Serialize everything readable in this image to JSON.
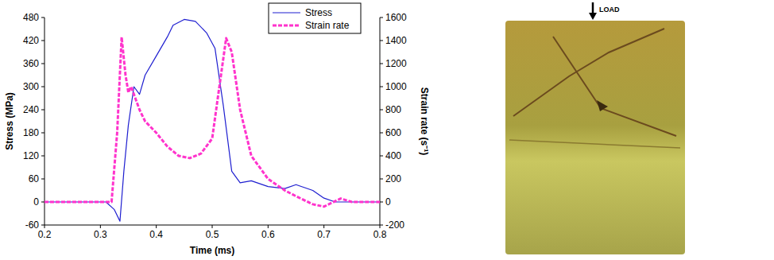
{
  "chart_data": {
    "type": "line",
    "x_label": "Time (ms)",
    "y_label": "Stress (MPa)",
    "y2_label": "Strain rate (s⁻¹)",
    "xlim": [
      0.2,
      0.8
    ],
    "xticks": [
      0.2,
      0.3,
      0.4,
      0.5,
      0.6,
      0.7,
      0.8
    ],
    "ylim": [
      -60,
      480
    ],
    "yticks": [
      -60,
      0,
      60,
      120,
      180,
      240,
      300,
      360,
      420,
      480
    ],
    "y2lim": [
      -200,
      1600
    ],
    "y2ticks": [
      -200,
      0,
      200,
      400,
      600,
      800,
      1000,
      1200,
      1400,
      1600
    ],
    "legend": "top-right",
    "series": [
      {
        "name": "Stress",
        "color": "#1f1fd0",
        "line_style": "solid",
        "x": [
          0.2,
          0.31,
          0.325,
          0.335,
          0.342,
          0.35,
          0.36,
          0.37,
          0.38,
          0.4,
          0.42,
          0.43,
          0.45,
          0.47,
          0.49,
          0.505,
          0.52,
          0.535,
          0.55,
          0.57,
          0.6,
          0.63,
          0.65,
          0.68,
          0.7,
          0.72,
          0.8
        ],
        "values": [
          0,
          0,
          -20,
          -50,
          80,
          200,
          300,
          280,
          330,
          380,
          430,
          460,
          475,
          470,
          440,
          400,
          250,
          80,
          50,
          55,
          40,
          35,
          45,
          30,
          10,
          0,
          0
        ]
      },
      {
        "name": "Strain rate",
        "color": "#ff33cc",
        "line_style": "dashed",
        "axis": "y2",
        "x": [
          0.2,
          0.32,
          0.33,
          0.338,
          0.345,
          0.35,
          0.355,
          0.37,
          0.38,
          0.4,
          0.42,
          0.44,
          0.46,
          0.48,
          0.5,
          0.51,
          0.525,
          0.535,
          0.55,
          0.57,
          0.6,
          0.63,
          0.65,
          0.68,
          0.7,
          0.73,
          0.75,
          0.8
        ],
        "values": [
          0,
          0,
          600,
          1430,
          1100,
          950,
          1000,
          800,
          700,
          600,
          480,
          400,
          380,
          420,
          550,
          900,
          1420,
          1300,
          800,
          400,
          200,
          100,
          50,
          -20,
          -40,
          30,
          0,
          0
        ]
      }
    ]
  },
  "image": {
    "label": "LOAD"
  }
}
